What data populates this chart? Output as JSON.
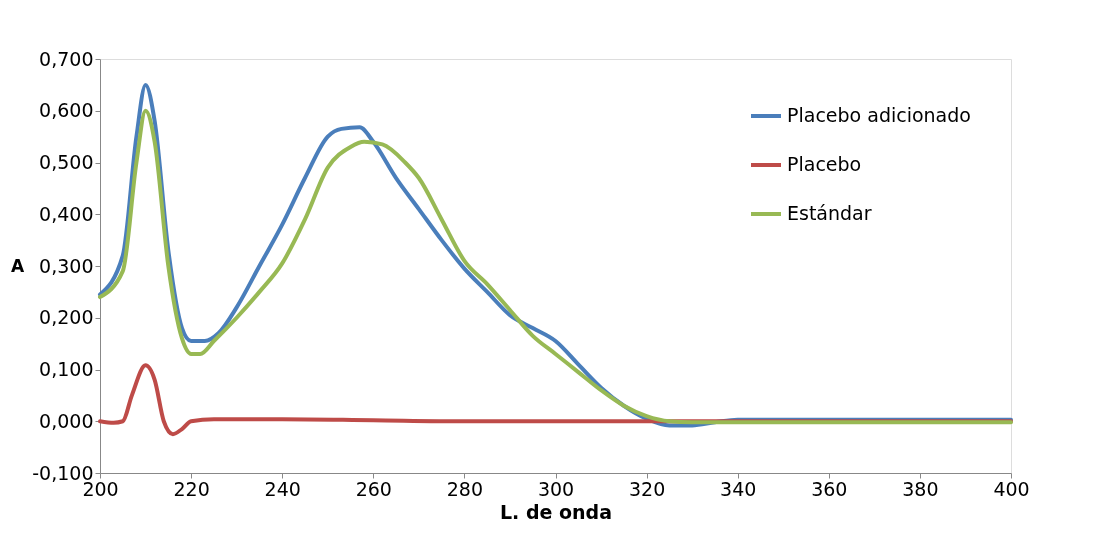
{
  "chart_data": {
    "type": "line",
    "xlabel": "L. de onda",
    "ylabel": "A",
    "legend": "top right",
    "grid": false,
    "marker": "none",
    "line_style": "solid",
    "xlim": [
      200,
      400
    ],
    "xticks": [
      200,
      220,
      240,
      260,
      280,
      300,
      320,
      340,
      360,
      380,
      400
    ],
    "ylim": [
      -0.1,
      0.7
    ],
    "yticks": [
      {
        "value": -0.1,
        "label": "-0,100"
      },
      {
        "value": 0,
        "label": "0,000"
      },
      {
        "value": 0.1,
        "label": "0,100"
      },
      {
        "value": 0.2,
        "label": "0,200"
      },
      {
        "value": 0.3,
        "label": "0,300"
      },
      {
        "value": 0.4,
        "label": "0,400"
      },
      {
        "value": 0.5,
        "label": "0,500"
      },
      {
        "value": 0.6,
        "label": "0,600"
      },
      {
        "value": 0.7,
        "label": "0,700"
      }
    ],
    "series": [
      {
        "name": "Placebo adicionado",
        "color": "#4a7ebb",
        "x": [
          200,
          205,
          208,
          210,
          212,
          215,
          218,
          220,
          223,
          226,
          230,
          235,
          240,
          245,
          250,
          253,
          257,
          260,
          265,
          270,
          275,
          280,
          285,
          290,
          295,
          300,
          305,
          310,
          315,
          320,
          325,
          330,
          335,
          340,
          400
        ],
        "values": [
          0.245,
          0.32,
          0.55,
          0.65,
          0.58,
          0.33,
          0.18,
          0.155,
          0.155,
          0.17,
          0.22,
          0.3,
          0.38,
          0.47,
          0.55,
          0.565,
          0.568,
          0.54,
          0.47,
          0.41,
          0.35,
          0.295,
          0.25,
          0.205,
          0.18,
          0.155,
          0.11,
          0.065,
          0.03,
          0.005,
          -0.008,
          -0.008,
          -0.002,
          0.003,
          0.003
        ]
      },
      {
        "name": "Placebo",
        "color": "#be4b48",
        "x": [
          200,
          203,
          205,
          207,
          210,
          212,
          214,
          216,
          218,
          220,
          225,
          240,
          260,
          280,
          400
        ],
        "values": [
          0.0,
          -0.003,
          0.0,
          0.05,
          0.108,
          0.08,
          0.0,
          -0.025,
          -0.015,
          0.0,
          0.004,
          0.004,
          0.002,
          0.0,
          0.0
        ]
      },
      {
        "name": "Estándar",
        "color": "#98b954",
        "x": [
          200,
          205,
          208,
          210,
          212,
          215,
          218,
          220,
          222,
          225,
          230,
          235,
          240,
          245,
          250,
          255,
          258,
          262,
          267,
          270,
          275,
          280,
          285,
          290,
          295,
          300,
          305,
          310,
          315,
          320,
          325,
          330,
          340,
          400
        ],
        "values": [
          0.24,
          0.29,
          0.5,
          0.6,
          0.54,
          0.3,
          0.16,
          0.13,
          0.13,
          0.155,
          0.2,
          0.25,
          0.305,
          0.39,
          0.49,
          0.53,
          0.54,
          0.535,
          0.5,
          0.47,
          0.39,
          0.31,
          0.265,
          0.215,
          0.165,
          0.13,
          0.095,
          0.06,
          0.03,
          0.01,
          0.0,
          -0.002,
          -0.002,
          -0.002
        ]
      }
    ]
  }
}
